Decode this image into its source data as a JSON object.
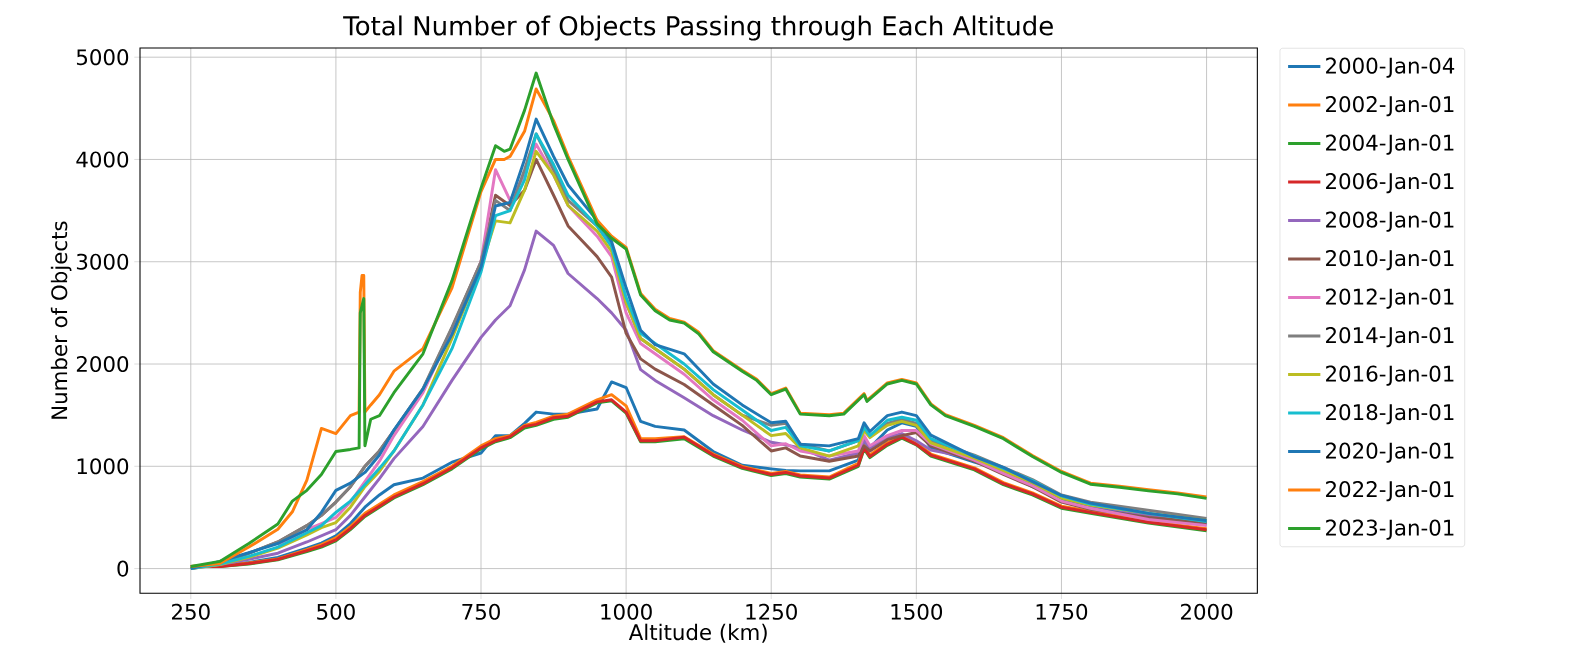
{
  "chart_data": {
    "type": "line",
    "title": "Total Number of Objects Passing through Each Altitude",
    "xlabel": "Altitude (km)",
    "ylabel": "Number of Objects",
    "x": [
      250,
      300,
      350,
      400,
      450,
      475,
      500,
      525,
      550,
      575,
      600,
      650,
      700,
      750,
      775,
      800,
      825,
      845,
      875,
      900,
      950,
      975,
      1000,
      1025,
      1050,
      1100,
      1150,
      1200,
      1250,
      1275,
      1300,
      1350,
      1400,
      1410,
      1420,
      1450,
      1475,
      1500,
      1525,
      1600,
      1650,
      1700,
      1750,
      1800,
      1900,
      2000
    ],
    "xlim": [
      162.5,
      2087.5
    ],
    "ylim": [
      -242,
      5090
    ],
    "xticks": [
      250,
      500,
      750,
      1000,
      1250,
      1500,
      1750,
      2000
    ],
    "yticks": [
      0,
      1000,
      2000,
      3000,
      4000,
      5000
    ],
    "grid": true,
    "legend": "right",
    "marker": "none",
    "line_style": "solid",
    "series": [
      {
        "name": "2000-Jan-04",
        "color": "#1f77b4",
        "values": [
          20,
          25,
          60,
          110,
          200,
          250,
          320,
          440,
          600,
          720,
          820,
          885,
          1040,
          1130,
          1300,
          1300,
          1420,
          1530,
          1510,
          1510,
          1560,
          1825,
          1770,
          1440,
          1390,
          1355,
          1145,
          1010,
          975,
          960,
          955,
          955,
          1060,
          1250,
          1180,
          1355,
          1425,
          1390,
          1180,
          1040,
          955,
          800,
          680,
          600,
          500,
          440
        ]
      },
      {
        "name": "2002-Jan-01",
        "color": "#ff7f0e",
        "values": [
          20,
          25,
          55,
          95,
          185,
          235,
          300,
          410,
          540,
          630,
          720,
          850,
          1000,
          1200,
          1270,
          1300,
          1400,
          1430,
          1490,
          1510,
          1650,
          1700,
          1590,
          1270,
          1270,
          1290,
          1120,
          1000,
          930,
          950,
          915,
          895,
          1030,
          1200,
          1110,
          1230,
          1300,
          1230,
          1120,
          985,
          840,
          740,
          610,
          560,
          460,
          390
        ]
      },
      {
        "name": "2004-Jan-01",
        "color": "#2ca02c",
        "values": [
          20,
          20,
          45,
          85,
          165,
          210,
          270,
          380,
          510,
          600,
          690,
          820,
          975,
          1170,
          1240,
          1280,
          1375,
          1400,
          1460,
          1480,
          1620,
          1640,
          1520,
          1240,
          1240,
          1270,
          1100,
          980,
          910,
          930,
          895,
          875,
          1000,
          1170,
          1085,
          1205,
          1275,
          1210,
          1100,
          965,
          820,
          720,
          590,
          540,
          445,
          370
        ]
      },
      {
        "name": "2006-Jan-01",
        "color": "#d62728",
        "values": [
          20,
          20,
          50,
          90,
          175,
          220,
          280,
          390,
          520,
          610,
          700,
          830,
          985,
          1180,
          1250,
          1290,
          1390,
          1410,
          1475,
          1490,
          1630,
          1650,
          1530,
          1250,
          1250,
          1285,
          1110,
          990,
          920,
          940,
          905,
          885,
          1010,
          1180,
          1095,
          1215,
          1285,
          1215,
          1110,
          975,
          830,
          730,
          600,
          550,
          453,
          380
        ]
      },
      {
        "name": "2008-Jan-01",
        "color": "#9467bd",
        "values": [
          0,
          40,
          90,
          150,
          260,
          320,
          380,
          520,
          700,
          880,
          1075,
          1390,
          1840,
          2260,
          2430,
          2570,
          2920,
          3300,
          3160,
          2885,
          2640,
          2500,
          2330,
          1945,
          1840,
          1670,
          1495,
          1355,
          1235,
          1210,
          1180,
          1060,
          1130,
          1250,
          1180,
          1285,
          1320,
          1250,
          1160,
          1075,
          950,
          830,
          700,
          620,
          520,
          430
        ]
      },
      {
        "name": "2010-Jan-01",
        "color": "#8c564b",
        "values": [
          0,
          60,
          150,
          260,
          420,
          520,
          650,
          800,
          1000,
          1150,
          1350,
          1750,
          2350,
          3000,
          3650,
          3550,
          3700,
          4000,
          3650,
          3350,
          3050,
          2850,
          2300,
          2050,
          1950,
          1800,
          1600,
          1400,
          1150,
          1180,
          1100,
          1050,
          1100,
          1200,
          1150,
          1260,
          1300,
          1330,
          1200,
          1050,
          920,
          800,
          650,
          580,
          500,
          450
        ]
      },
      {
        "name": "2012-Jan-01",
        "color": "#e377c2",
        "values": [
          null,
          null,
          null,
          235,
          380,
          440,
          500,
          650,
          850,
          1050,
          1300,
          1720,
          2330,
          3000,
          3900,
          3600,
          3850,
          4150,
          3850,
          3550,
          3250,
          3050,
          2500,
          2200,
          2100,
          1900,
          1650,
          1450,
          1200,
          1220,
          1150,
          1100,
          1150,
          1300,
          1200,
          1300,
          1350,
          1350,
          1220,
          1060,
          930,
          810,
          660,
          590,
          480,
          420
        ]
      },
      {
        "name": "2014-Jan-01",
        "color": "#7f7f7f",
        "values": [
          0,
          60,
          150,
          260,
          420,
          520,
          650,
          800,
          1000,
          1150,
          1350,
          1760,
          2360,
          3000,
          3600,
          3500,
          3900,
          4250,
          3900,
          3600,
          3350,
          3150,
          2600,
          2250,
          2150,
          1950,
          1700,
          1500,
          1400,
          1420,
          1220,
          1150,
          1250,
          1400,
          1300,
          1420,
          1460,
          1420,
          1250,
          1110,
          990,
          870,
          720,
          650,
          570,
          490
        ]
      },
      {
        "name": "2016-Jan-01",
        "color": "#bcbd22",
        "values": [
          0,
          40,
          110,
          200,
          330,
          400,
          450,
          600,
          800,
          950,
          1150,
          1600,
          2250,
          2950,
          3400,
          3380,
          3700,
          4080,
          3850,
          3550,
          3300,
          3100,
          2600,
          2250,
          2150,
          1950,
          1700,
          1500,
          1300,
          1320,
          1180,
          1100,
          1200,
          1350,
          1280,
          1400,
          1440,
          1400,
          1230,
          1080,
          960,
          840,
          690,
          620,
          540,
          470
        ]
      },
      {
        "name": "2018-Jan-01",
        "color": "#17becf",
        "values": [
          0,
          45,
          120,
          210,
          350,
          420,
          550,
          660,
          820,
          980,
          1150,
          1600,
          2150,
          2900,
          3450,
          3500,
          3800,
          4250,
          3950,
          3650,
          3350,
          3150,
          2650,
          2300,
          2200,
          2000,
          1750,
          1550,
          1350,
          1380,
          1200,
          1150,
          1250,
          1380,
          1300,
          1450,
          1480,
          1450,
          1270,
          1100,
          980,
          860,
          710,
          630,
          540,
          460
        ]
      },
      {
        "name": "2020-Jan-01",
        "color": "#1f77b4",
        "values": [
          0,
          70,
          155,
          245,
          380,
          550,
          765,
          835,
          940,
          1110,
          1355,
          1755,
          2290,
          2950,
          3545,
          3580,
          4000,
          4395,
          4030,
          3750,
          3405,
          3195,
          2745,
          2330,
          2190,
          2100,
          1805,
          1600,
          1425,
          1440,
          1215,
          1200,
          1270,
          1425,
          1340,
          1495,
          1530,
          1495,
          1305,
          1095,
          990,
          850,
          715,
          640,
          540,
          470
        ]
      },
      {
        "name": "2022-Jan-01",
        "color": "#ff7f0e",
        "x": [
          250,
          300,
          350,
          400,
          425,
          450,
          475,
          500,
          525,
          540,
          542,
          545,
          548,
          550,
          560,
          575,
          600,
          650,
          700,
          750,
          775,
          790,
          800,
          825,
          845,
          875,
          900,
          950,
          975,
          1000,
          1025,
          1050,
          1075,
          1100,
          1125,
          1150,
          1200,
          1225,
          1250,
          1275,
          1300,
          1350,
          1375,
          1410,
          1415,
          1450,
          1475,
          1500,
          1525,
          1550,
          1600,
          1650,
          1700,
          1750,
          1800,
          1850,
          1900,
          1950,
          2000
        ],
        "values": [
          20,
          50,
          210,
          385,
          555,
          865,
          1370,
          1320,
          1495,
          1530,
          2700,
          2865,
          2865,
          1530,
          1600,
          1700,
          1930,
          2150,
          2745,
          3685,
          4000,
          4000,
          4030,
          4275,
          4690,
          4380,
          4030,
          3405,
          3250,
          3140,
          2690,
          2535,
          2445,
          2410,
          2310,
          2130,
          1940,
          1850,
          1710,
          1765,
          1520,
          1505,
          1520,
          1710,
          1645,
          1815,
          1850,
          1815,
          1610,
          1505,
          1400,
          1280,
          1105,
          950,
          835,
          805,
          770,
          740,
          700
        ]
      },
      {
        "name": "2023-Jan-01",
        "color": "#2ca02c",
        "x": [
          250,
          300,
          350,
          400,
          425,
          450,
          475,
          500,
          525,
          540,
          542,
          545,
          548,
          550,
          560,
          575,
          600,
          650,
          700,
          750,
          775,
          790,
          800,
          825,
          845,
          875,
          900,
          950,
          975,
          1000,
          1025,
          1050,
          1075,
          1100,
          1125,
          1150,
          1200,
          1225,
          1250,
          1275,
          1300,
          1350,
          1375,
          1410,
          1415,
          1450,
          1475,
          1500,
          1525,
          1550,
          1600,
          1650,
          1700,
          1750,
          1800,
          1850,
          1900,
          1950,
          2000
        ],
        "values": [
          20,
          70,
          245,
          435,
          660,
          765,
          920,
          1145,
          1165,
          1180,
          2500,
          2570,
          2640,
          1200,
          1460,
          1495,
          1720,
          2100,
          2815,
          3720,
          4135,
          4080,
          4100,
          4480,
          4845,
          4345,
          4000,
          3370,
          3230,
          3125,
          2675,
          2520,
          2430,
          2400,
          2295,
          2120,
          1930,
          1840,
          1700,
          1755,
          1510,
          1495,
          1510,
          1700,
          1635,
          1805,
          1840,
          1805,
          1600,
          1495,
          1390,
          1270,
          1095,
          940,
          825,
          795,
          760,
          730,
          686
        ]
      }
    ]
  }
}
